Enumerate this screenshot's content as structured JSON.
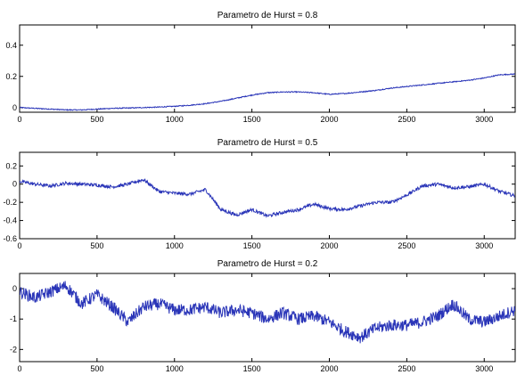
{
  "colors": {
    "series": "#2a35b8",
    "axes": "#000000",
    "background": "#ffffff"
  },
  "chart_data": [
    {
      "type": "line",
      "title": "Parametro de Hurst = 0.8",
      "xlabel": "",
      "ylabel": "",
      "xlim": [
        0,
        3200
      ],
      "ylim": [
        -0.03,
        0.53
      ],
      "xticks": [
        0,
        500,
        1000,
        1500,
        2000,
        2500,
        3000
      ],
      "yticks": [
        0,
        0.2,
        0.4
      ],
      "yticklabels": [
        "0",
        "0.2",
        "0.4"
      ],
      "grid": false,
      "legend": "none",
      "noise": 0.003,
      "series": [
        {
          "x": [
            0,
            100,
            200,
            300,
            400,
            500,
            600,
            700,
            800,
            900,
            1000,
            1100,
            1200,
            1300,
            1400,
            1500,
            1600,
            1700,
            1800,
            1900,
            2000,
            2100,
            2200,
            2300,
            2400,
            2500,
            2600,
            2700,
            2800,
            2900,
            3000,
            3100,
            3200
          ],
          "y": [
            0.0,
            -0.005,
            -0.01,
            -0.015,
            -0.015,
            -0.01,
            -0.005,
            -0.003,
            0.0,
            0.003,
            0.008,
            0.015,
            0.025,
            0.04,
            0.06,
            0.08,
            0.095,
            0.1,
            0.1,
            0.095,
            0.085,
            0.09,
            0.1,
            0.11,
            0.125,
            0.135,
            0.145,
            0.155,
            0.165,
            0.175,
            0.19,
            0.21,
            0.215
          ]
        }
      ]
    },
    {
      "type": "line",
      "title": "Parametro de Hurst = 0.5",
      "xlabel": "",
      "ylabel": "",
      "xlim": [
        0,
        3200
      ],
      "ylim": [
        -0.6,
        0.35
      ],
      "xticks": [
        0,
        500,
        1000,
        1500,
        2000,
        2500,
        3000
      ],
      "yticks": [
        -0.6,
        -0.4,
        -0.2,
        0,
        0.2
      ],
      "yticklabels": [
        "-0.6",
        "-0.4",
        "-0.2",
        "0",
        "0.2"
      ],
      "grid": false,
      "legend": "none",
      "noise": 0.018,
      "series": [
        {
          "x": [
            0,
            100,
            200,
            300,
            400,
            500,
            600,
            700,
            800,
            900,
            1000,
            1100,
            1200,
            1300,
            1400,
            1500,
            1600,
            1700,
            1800,
            1900,
            2000,
            2100,
            2200,
            2300,
            2400,
            2500,
            2600,
            2700,
            2800,
            2900,
            3000,
            3100,
            3200
          ],
          "y": [
            0.03,
            0.0,
            -0.02,
            0.01,
            0.0,
            -0.01,
            -0.03,
            0.0,
            0.05,
            -0.08,
            -0.1,
            -0.11,
            -0.06,
            -0.28,
            -0.34,
            -0.28,
            -0.35,
            -0.31,
            -0.28,
            -0.22,
            -0.27,
            -0.28,
            -0.24,
            -0.2,
            -0.2,
            -0.12,
            -0.02,
            0.0,
            -0.04,
            -0.03,
            0.0,
            -0.08,
            -0.13
          ]
        }
      ]
    },
    {
      "type": "line",
      "title": "Parametro de Hurst = 0.2",
      "xlabel": "",
      "ylabel": "",
      "xlim": [
        0,
        3200
      ],
      "ylim": [
        -2.4,
        0.5
      ],
      "xticks": [
        0,
        500,
        1000,
        1500,
        2000,
        2500,
        3000
      ],
      "yticks": [
        -2,
        -1,
        0
      ],
      "yticklabels": [
        "-2",
        "-1",
        "0"
      ],
      "grid": false,
      "legend": "none",
      "noise": 0.2,
      "series": [
        {
          "x": [
            0,
            100,
            200,
            300,
            400,
            500,
            600,
            700,
            800,
            900,
            1000,
            1100,
            1200,
            1300,
            1400,
            1500,
            1600,
            1700,
            1800,
            1900,
            2000,
            2100,
            2200,
            2300,
            2400,
            2500,
            2600,
            2700,
            2800,
            2900,
            3000,
            3100,
            3200
          ],
          "y": [
            -0.1,
            -0.3,
            -0.1,
            0.1,
            -0.5,
            -0.2,
            -0.6,
            -1.1,
            -0.6,
            -0.5,
            -0.7,
            -0.7,
            -0.6,
            -0.8,
            -0.7,
            -0.8,
            -1.0,
            -0.8,
            -1.0,
            -0.9,
            -1.1,
            -1.4,
            -1.6,
            -1.3,
            -1.2,
            -1.2,
            -1.1,
            -0.9,
            -0.5,
            -1.0,
            -1.1,
            -0.9,
            -0.7
          ]
        }
      ]
    }
  ]
}
